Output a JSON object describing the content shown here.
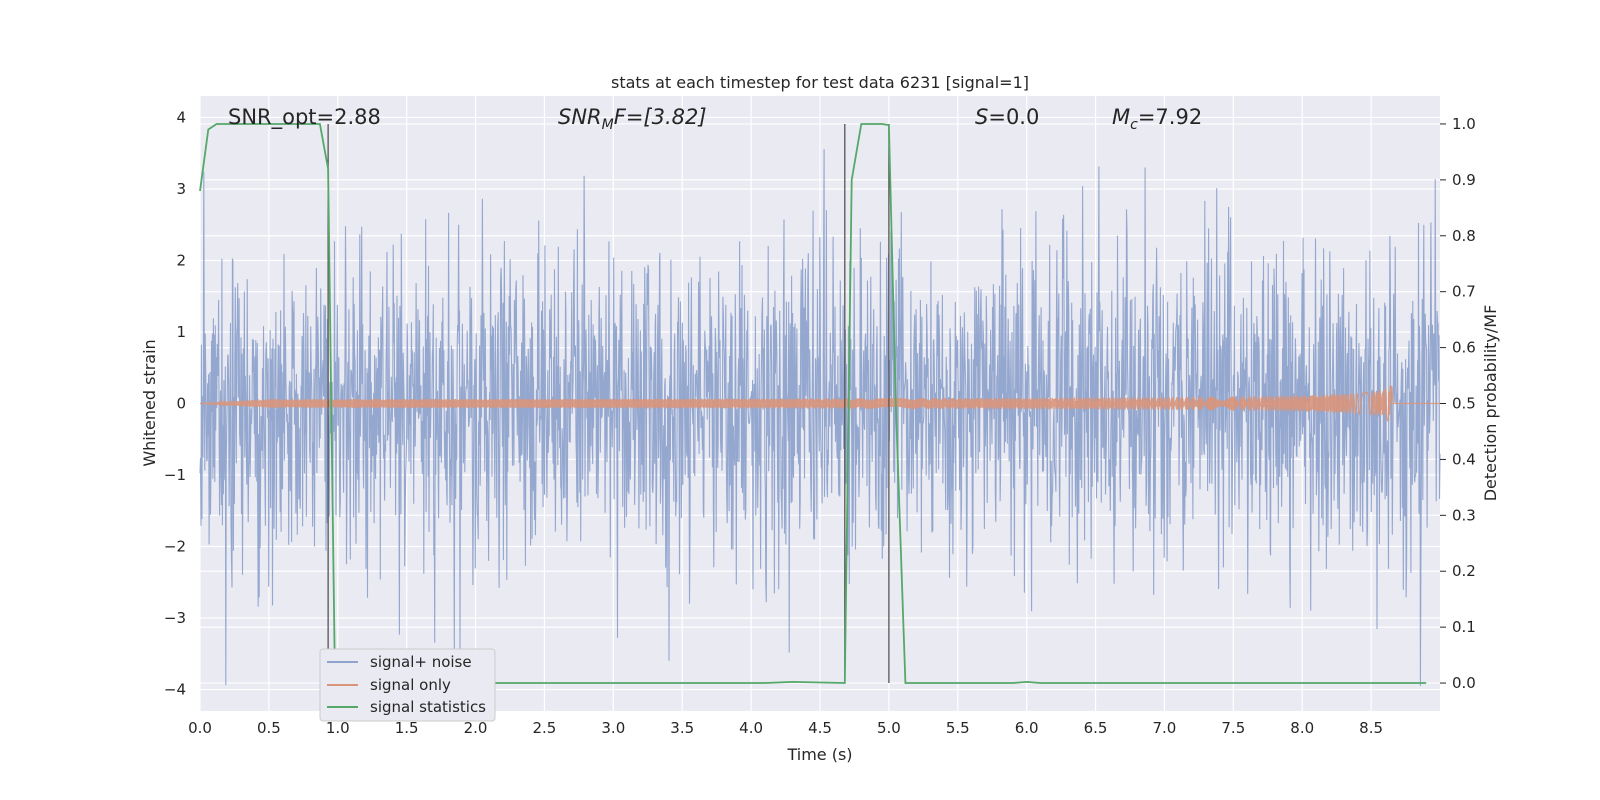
{
  "chart_data": {
    "type": "line",
    "title": "stats at each timestep for test data 6231 [signal=1]",
    "xlabel": "Time (s)",
    "ylabel": "Whitened strain",
    "ylabel_right": "Detection probability/MF",
    "xlim": [
      0,
      9
    ],
    "ylim": [
      -4.3,
      4.3
    ],
    "ylim_right": [
      -0.05,
      1.05
    ],
    "x_ticks": [
      "0.0",
      "0.5",
      "1.0",
      "1.5",
      "2.0",
      "2.5",
      "3.0",
      "3.5",
      "4.0",
      "4.5",
      "5.0",
      "5.5",
      "6.0",
      "6.5",
      "7.0",
      "7.5",
      "8.0",
      "8.5"
    ],
    "y_ticks": [
      "4",
      "3",
      "2",
      "1",
      "0",
      "−1",
      "−2",
      "−3",
      "−4"
    ],
    "y_ticks_right": [
      "1.0",
      "0.9",
      "0.8",
      "0.7",
      "0.6",
      "0.5",
      "0.4",
      "0.3",
      "0.2",
      "0.1",
      "0.0"
    ],
    "grid": true,
    "legend_position": "lower-left",
    "annotations": {
      "snr_opt": "SNR_opt=2.88",
      "snr_mf_main": "SNR",
      "snr_mf_sub": "M",
      "snr_mf_rest": "F=[3.82]",
      "s_main": "S",
      "s_rest": "=0.0",
      "mc_main": "M",
      "mc_sub": "c",
      "mc_rest": "=7.92"
    },
    "series": [
      {
        "name": "signal+ noise",
        "color": "#8fa3cc",
        "description_values": "gaussian whitened noise, amplitude approx within [-3.6, 3.9]"
      },
      {
        "name": "signal only",
        "color": "#d9957a",
        "chirp_end_time": 8.65,
        "peak_amplitude": 0.45
      },
      {
        "name": "signal statistics",
        "color": "#55a868",
        "x": [
          0.0,
          0.06,
          0.12,
          0.2,
          0.3,
          0.5,
          0.7,
          0.87,
          0.93,
          0.98,
          1.0,
          4.0,
          4.1,
          4.3,
          4.68,
          4.73,
          4.8,
          4.85,
          4.95,
          5.0,
          5.05,
          5.12,
          5.9,
          6.0,
          6.1,
          8.9
        ],
        "values": [
          0.88,
          0.99,
          1.0,
          1.0,
          1.0,
          1.0,
          1.0,
          1.0,
          0.92,
          0.0,
          0.0,
          0.0,
          0.0,
          0.002,
          0.0,
          0.9,
          1.0,
          1.0,
          1.0,
          0.998,
          0.5,
          0.0,
          0.0,
          0.002,
          0.0,
          0.0
        ]
      }
    ],
    "vertical_lines_x": [
      0.93,
      4.68,
      5.0
    ]
  },
  "colors": {
    "plot_bg": "#eaeaf2",
    "grid": "#ffffff",
    "noise": "#8fa3cc",
    "signal": "#d9957a",
    "stats": "#55a868",
    "vline": "#555555"
  }
}
